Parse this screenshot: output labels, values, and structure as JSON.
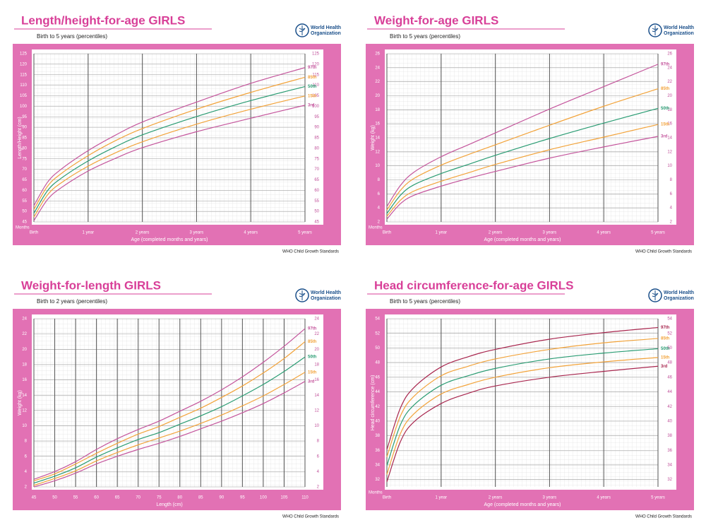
{
  "chart_data": [
    {
      "type": "line",
      "title": "Length/height-for-age GIRLS",
      "subtitle": "Birth to 5 years (percentiles)",
      "logo_text": [
        "World Health",
        "Organization"
      ],
      "footer": "WHO Child Growth Standards",
      "months_label": "Months",
      "x_label": "Age (completed months and years)",
      "y_label": "Length/Height (cm)",
      "x": [
        0,
        3,
        6,
        12,
        18,
        24,
        36,
        48,
        60
      ],
      "xlim": [
        0,
        60
      ],
      "xticks": [
        {
          "value": 0,
          "label": "Birth"
        },
        {
          "value": 12,
          "label": "1 year"
        },
        {
          "value": 24,
          "label": "2 years"
        },
        {
          "value": 36,
          "label": "3 years"
        },
        {
          "value": 48,
          "label": "4 years"
        },
        {
          "value": 60,
          "label": "5 years"
        }
      ],
      "ylim": [
        45,
        125
      ],
      "yticks": [
        45,
        50,
        55,
        60,
        65,
        70,
        75,
        80,
        85,
        90,
        95,
        100,
        105,
        110,
        115,
        120,
        125
      ],
      "grid": true,
      "series": [
        {
          "name": "97th",
          "color": "#c4559c",
          "values": [
            52.7,
            63.8,
            70.0,
            78.9,
            86.2,
            92.5,
            102.0,
            110.9,
            118.4
          ]
        },
        {
          "name": "85th",
          "color": "#f2a33a",
          "values": [
            50.9,
            61.9,
            67.9,
            76.5,
            83.6,
            89.4,
            98.6,
            106.6,
            113.8
          ]
        },
        {
          "name": "50th",
          "color": "#2a9c73",
          "values": [
            49.1,
            59.8,
            65.7,
            74.0,
            80.7,
            86.4,
            95.1,
            102.7,
            109.4
          ]
        },
        {
          "name": "15th",
          "color": "#f2a33a",
          "values": [
            47.3,
            57.8,
            63.5,
            71.5,
            77.8,
            83.1,
            91.5,
            98.6,
            104.9
          ]
        },
        {
          "name": "3rd",
          "color": "#c4559c",
          "values": [
            45.6,
            55.6,
            61.2,
            69.2,
            75.2,
            80.3,
            87.9,
            94.3,
            100.5
          ]
        }
      ]
    },
    {
      "type": "line",
      "title": "Weight-for-age GIRLS",
      "subtitle": "Birth to 5 years (percentiles)",
      "logo_text": [
        "World Health",
        "Organization"
      ],
      "footer": "WHO Child Growth Standards",
      "months_label": "Months",
      "x_label": "Age (completed months and years)",
      "y_label": "Weight (kg)",
      "x": [
        0,
        3,
        6,
        12,
        18,
        24,
        36,
        48,
        60
      ],
      "xlim": [
        0,
        60
      ],
      "xticks": [
        {
          "value": 0,
          "label": "Birth"
        },
        {
          "value": 12,
          "label": "1 year"
        },
        {
          "value": 24,
          "label": "2 years"
        },
        {
          "value": 36,
          "label": "3 years"
        },
        {
          "value": 48,
          "label": "4 years"
        },
        {
          "value": 60,
          "label": "5 years"
        }
      ],
      "ylim": [
        2,
        26
      ],
      "yticks": [
        2,
        4,
        6,
        8,
        10,
        12,
        14,
        16,
        18,
        20,
        22,
        24,
        26
      ],
      "grid": true,
      "series": [
        {
          "name": "97th",
          "color": "#c4559c",
          "values": [
            4.2,
            7.2,
            9.1,
            11.3,
            13.0,
            14.7,
            18.1,
            21.3,
            24.5
          ]
        },
        {
          "name": "85th",
          "color": "#f2a33a",
          "values": [
            3.7,
            6.5,
            8.2,
            10.1,
            11.6,
            13.0,
            15.8,
            18.5,
            21.0
          ]
        },
        {
          "name": "50th",
          "color": "#2a9c73",
          "values": [
            3.2,
            5.8,
            7.3,
            8.9,
            10.2,
            11.5,
            13.9,
            16.1,
            18.2
          ]
        },
        {
          "name": "15th",
          "color": "#f2a33a",
          "values": [
            2.8,
            5.1,
            6.4,
            7.8,
            9.0,
            10.2,
            12.3,
            14.1,
            15.9
          ]
        },
        {
          "name": "3rd",
          "color": "#c4559c",
          "values": [
            2.4,
            4.6,
            5.8,
            7.1,
            8.2,
            9.2,
            11.1,
            12.7,
            14.2
          ]
        }
      ]
    },
    {
      "type": "line",
      "title": "Weight-for-length GIRLS",
      "subtitle": "Birth to 2 years (percentiles)",
      "logo_text": [
        "World Health",
        "Organization"
      ],
      "footer": "WHO Child Growth Standards",
      "x_label": "Length (cm)",
      "y_label": "Weight (kg)",
      "x": [
        45,
        50,
        55,
        60,
        65,
        70,
        75,
        80,
        85,
        90,
        95,
        100,
        105,
        110
      ],
      "xlim": [
        45,
        110
      ],
      "xticks": [
        45,
        50,
        55,
        60,
        65,
        70,
        75,
        80,
        85,
        90,
        95,
        100,
        105,
        110
      ],
      "ylim": [
        2,
        24
      ],
      "yticks": [
        2,
        4,
        6,
        8,
        10,
        12,
        14,
        16,
        18,
        20,
        22,
        24
      ],
      "grid": true,
      "series": [
        {
          "name": "97th",
          "color": "#c4559c",
          "values": [
            3.0,
            4.0,
            5.3,
            6.9,
            8.3,
            9.5,
            10.6,
            11.9,
            13.2,
            14.7,
            16.4,
            18.3,
            20.4,
            22.7
          ]
        },
        {
          "name": "85th",
          "color": "#f2a33a",
          "values": [
            2.8,
            3.7,
            5.0,
            6.4,
            7.7,
            8.9,
            9.9,
            11.1,
            12.3,
            13.7,
            15.2,
            16.9,
            18.8,
            21.0
          ]
        },
        {
          "name": "50th",
          "color": "#2a9c73",
          "values": [
            2.5,
            3.4,
            4.5,
            5.9,
            7.1,
            8.2,
            9.1,
            10.2,
            11.3,
            12.5,
            13.9,
            15.4,
            17.1,
            19.0
          ]
        },
        {
          "name": "15th",
          "color": "#f2a33a",
          "values": [
            2.2,
            3.1,
            4.1,
            5.4,
            6.5,
            7.5,
            8.4,
            9.3,
            10.3,
            11.4,
            12.6,
            13.9,
            15.4,
            17.0
          ]
        },
        {
          "name": "3rd",
          "color": "#c4559c",
          "values": [
            2.0,
            2.8,
            3.8,
            5.0,
            6.0,
            6.9,
            7.7,
            8.6,
            9.6,
            10.6,
            11.7,
            12.9,
            14.3,
            15.8
          ]
        }
      ]
    },
    {
      "type": "line",
      "title": "Head circumference-for-age GIRLS",
      "subtitle": "Birth to 5 years (percentiles)",
      "logo_text": [
        "World Health",
        "Organization"
      ],
      "footer": "WHO Child Growth Standards",
      "months_label": "Months",
      "x_label": "Age (completed months and years)",
      "y_label": "Head circumference (cm)",
      "x": [
        0,
        3,
        6,
        12,
        18,
        24,
        36,
        48,
        60
      ],
      "xlim": [
        0,
        60
      ],
      "xticks": [
        {
          "value": 0,
          "label": "Birth"
        },
        {
          "value": 12,
          "label": "1 year"
        },
        {
          "value": 24,
          "label": "2 years"
        },
        {
          "value": 36,
          "label": "3 years"
        },
        {
          "value": 48,
          "label": "4 years"
        },
        {
          "value": 60,
          "label": "5 years"
        }
      ],
      "ylim": [
        31,
        54
      ],
      "yticks": [
        32,
        34,
        36,
        38,
        40,
        42,
        44,
        46,
        48,
        50,
        52,
        54
      ],
      "grid": true,
      "series": [
        {
          "name": "97th",
          "color": "#a8264e",
          "values": [
            36.1,
            41.8,
            44.6,
            47.4,
            48.8,
            49.8,
            51.2,
            52.1,
            52.8
          ]
        },
        {
          "name": "85th",
          "color": "#f2a33a",
          "values": [
            35.1,
            40.7,
            43.4,
            46.2,
            47.5,
            48.5,
            49.8,
            50.7,
            51.3
          ]
        },
        {
          "name": "50th",
          "color": "#2a9c73",
          "values": [
            33.9,
            39.5,
            42.2,
            44.9,
            46.2,
            47.2,
            48.5,
            49.3,
            49.9
          ]
        },
        {
          "name": "15th",
          "color": "#f2a33a",
          "values": [
            32.7,
            38.3,
            41.0,
            43.7,
            45.0,
            46.0,
            47.3,
            48.1,
            48.7
          ]
        },
        {
          "name": "3rd",
          "color": "#a8264e",
          "values": [
            31.7,
            37.2,
            39.9,
            42.4,
            43.8,
            44.8,
            46.0,
            46.8,
            47.5
          ]
        }
      ]
    }
  ]
}
